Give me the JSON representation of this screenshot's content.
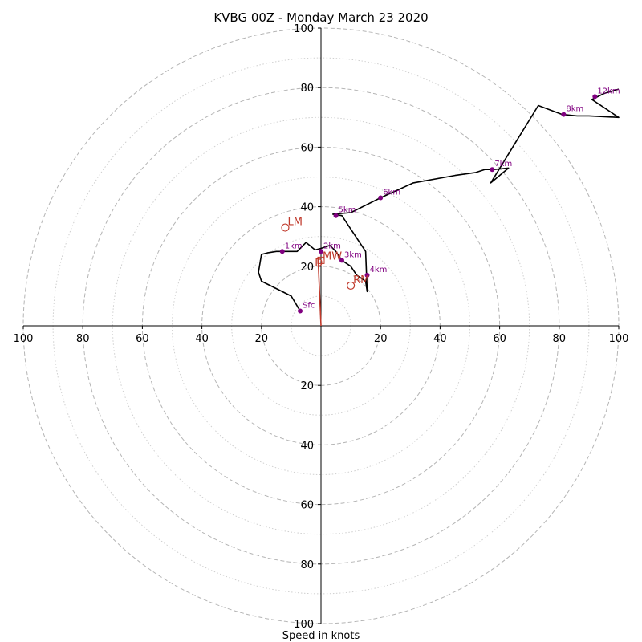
{
  "chart_data": {
    "type": "hodograph",
    "title": "KVBG 00Z - Monday March 23 2020",
    "xlabel": "Speed in knots",
    "range": [
      -100,
      100
    ],
    "ring_major": [
      20,
      40,
      60,
      80,
      100
    ],
    "ring_minor": [
      10,
      30,
      50,
      70,
      90
    ],
    "x_ticks": [
      "100",
      "80",
      "60",
      "40",
      "20",
      "",
      "20",
      "40",
      "60",
      "80",
      "100"
    ],
    "x_tick_values": [
      -100,
      -80,
      -60,
      -40,
      -20,
      0,
      20,
      40,
      60,
      80,
      100
    ],
    "y_ticks": [
      "100",
      "80",
      "60",
      "40",
      "20",
      "20",
      "40",
      "60",
      "80",
      "100"
    ],
    "y_tick_values": [
      100,
      80,
      60,
      40,
      20,
      -20,
      -40,
      -60,
      -80,
      -100
    ],
    "trace_color": "#000000",
    "marker_color": "#800080",
    "motion_color": "#c0392b",
    "trace": [
      [
        -7,
        5
      ],
      [
        -10,
        10
      ],
      [
        -20,
        15
      ],
      [
        -21,
        18
      ],
      [
        -20,
        24
      ],
      [
        -18,
        24.5
      ],
      [
        -15,
        25
      ],
      [
        -12,
        25
      ],
      [
        -8,
        25
      ],
      [
        -5,
        28
      ],
      [
        -2,
        25.5
      ],
      [
        0,
        26
      ],
      [
        3,
        27
      ],
      [
        5,
        25
      ],
      [
        7,
        22
      ],
      [
        10,
        20
      ],
      [
        12,
        17
      ],
      [
        15,
        15
      ],
      [
        15.5,
        11.5
      ],
      [
        15,
        25
      ],
      [
        7,
        37
      ],
      [
        4,
        37.5
      ],
      [
        10,
        38
      ],
      [
        20,
        43
      ],
      [
        31,
        48
      ],
      [
        45,
        50.5
      ],
      [
        52,
        51.5
      ],
      [
        55,
        52.5
      ],
      [
        58,
        52.5
      ],
      [
        63,
        53
      ],
      [
        57,
        48
      ],
      [
        73,
        74
      ],
      [
        81,
        71
      ],
      [
        86,
        70.5
      ],
      [
        90,
        70.5
      ],
      [
        100,
        70
      ],
      [
        91,
        76
      ],
      [
        95,
        78
      ],
      [
        100,
        79.5
      ]
    ],
    "height_markers": [
      {
        "label": "Sfc",
        "u": -7,
        "v": 5
      },
      {
        "label": "1km",
        "u": -13,
        "v": 25
      },
      {
        "label": "2km",
        "u": 0,
        "v": 25
      },
      {
        "label": "3km",
        "u": 7,
        "v": 22
      },
      {
        "label": "4km",
        "u": 15.5,
        "v": 17
      },
      {
        "label": "5km",
        "u": 5,
        "v": 37
      },
      {
        "label": "6km",
        "u": 20,
        "v": 43
      },
      {
        "label": "7km",
        "u": 57.5,
        "v": 52.5
      },
      {
        "label": "8km",
        "u": 81.5,
        "v": 71
      },
      {
        "label": "12km",
        "u": 92,
        "v": 77
      }
    ],
    "storm_motions": [
      {
        "label": "LM",
        "u": -12,
        "v": 33
      },
      {
        "label": "RM",
        "u": 10,
        "v": 13.5
      },
      {
        "label": "MW",
        "u": 0,
        "v": 22
      },
      {
        "label": "D",
        "u": -1,
        "v": 21
      }
    ],
    "shear_vector": {
      "from": [
        0,
        0
      ],
      "to": [
        -1,
        23
      ]
    }
  }
}
